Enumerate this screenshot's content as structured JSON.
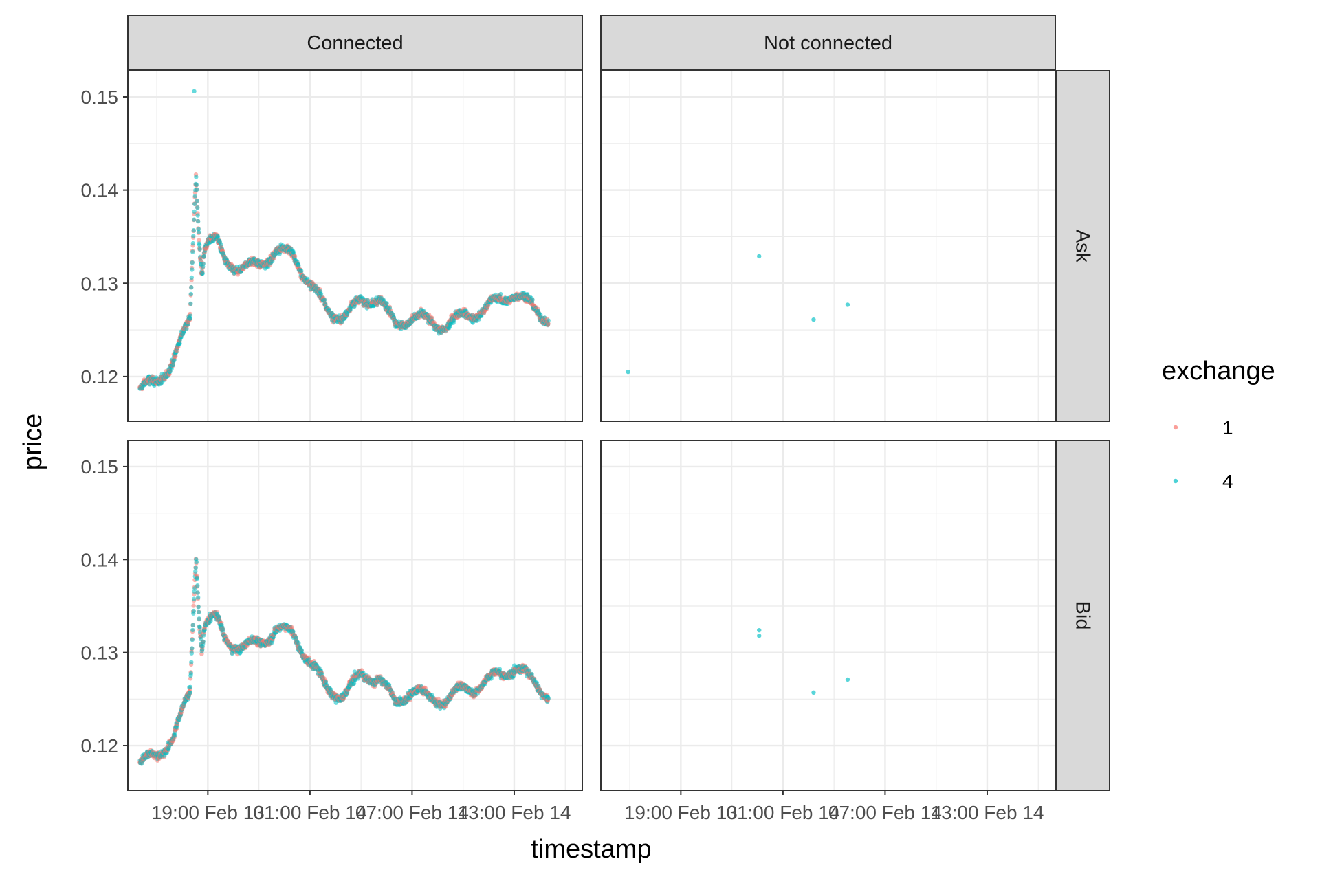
{
  "chart_data": {
    "type": "scatter",
    "xlabel": "timestamp",
    "ylabel": "price",
    "ylim": [
      0.1152,
      0.1528
    ],
    "y_ticks": [
      0.12,
      0.13,
      0.14,
      0.15
    ],
    "y_tick_labels": [
      "0.12",
      "0.13",
      "0.14",
      "0.15"
    ],
    "x_tick_labels": [
      "19:00 Feb 13",
      "01:00 Feb 14",
      "07:00 Feb 14",
      "13:00 Feb 14"
    ],
    "x_ticks_hours": [
      0,
      6,
      12,
      18
    ],
    "x_range_hours": [
      -4.7,
      22.0
    ],
    "grid": true,
    "facet_columns": [
      "Connected",
      "Not connected"
    ],
    "facet_rows": [
      "Ask",
      "Bid"
    ],
    "legend": {
      "title": "exchange",
      "position": "right",
      "entries": [
        {
          "label": "1",
          "color": "#F8766D"
        },
        {
          "label": "4",
          "color": "#00BFC4"
        }
      ]
    },
    "series_profile": {
      "description_hours": "x in hours relative to 19:00 Feb 13",
      "x": [
        -4.0,
        -3.0,
        -2.0,
        -1.0,
        -0.5,
        -0.2,
        0.0,
        0.5,
        1.0,
        2.0,
        3.0,
        4.0,
        5.0,
        6.0,
        7.0,
        8.0,
        9.0,
        10.0,
        11.0,
        12.0,
        13.0,
        14.0,
        15.0,
        16.0,
        17.0,
        18.0,
        19.0,
        20.0
      ],
      "ask": [
        0.1185,
        0.1195,
        0.1218,
        0.1265,
        0.129,
        0.134,
        0.1345,
        0.1345,
        0.1325,
        0.1315,
        0.132,
        0.1335,
        0.133,
        0.13,
        0.127,
        0.1265,
        0.128,
        0.1285,
        0.1255,
        0.1265,
        0.1258,
        0.1255,
        0.1265,
        0.127,
        0.128,
        0.129,
        0.1275,
        0.1262
      ],
      "bid": [
        0.118,
        0.119,
        0.121,
        0.126,
        0.1285,
        0.133,
        0.1335,
        0.1335,
        0.1315,
        0.1305,
        0.131,
        0.1325,
        0.132,
        0.129,
        0.126,
        0.1255,
        0.1275,
        0.1275,
        0.1245,
        0.126,
        0.125,
        0.125,
        0.126,
        0.1265,
        0.1275,
        0.1285,
        0.127,
        0.1255
      ],
      "spike": {
        "x": -0.7,
        "ask": 0.142,
        "bid": 0.1405
      },
      "outlier": {
        "panel": "connected-ask",
        "x": -0.8,
        "y": 0.1506,
        "exchange": "4"
      }
    },
    "not_connected_points": {
      "Ask": [
        {
          "x": -3.1,
          "y": 0.1205,
          "exchange": "4"
        },
        {
          "x": 4.6,
          "y": 0.1329,
          "exchange": "4"
        },
        {
          "x": 7.8,
          "y": 0.1261,
          "exchange": "4"
        },
        {
          "x": 9.8,
          "y": 0.1277,
          "exchange": "4"
        }
      ],
      "Bid": [
        {
          "x": 4.6,
          "y": 0.1324,
          "exchange": "4"
        },
        {
          "x": 4.6,
          "y": 0.1318,
          "exchange": "4"
        },
        {
          "x": 7.8,
          "y": 0.1257,
          "exchange": "4"
        },
        {
          "x": 9.8,
          "y": 0.1271,
          "exchange": "4"
        }
      ]
    }
  }
}
